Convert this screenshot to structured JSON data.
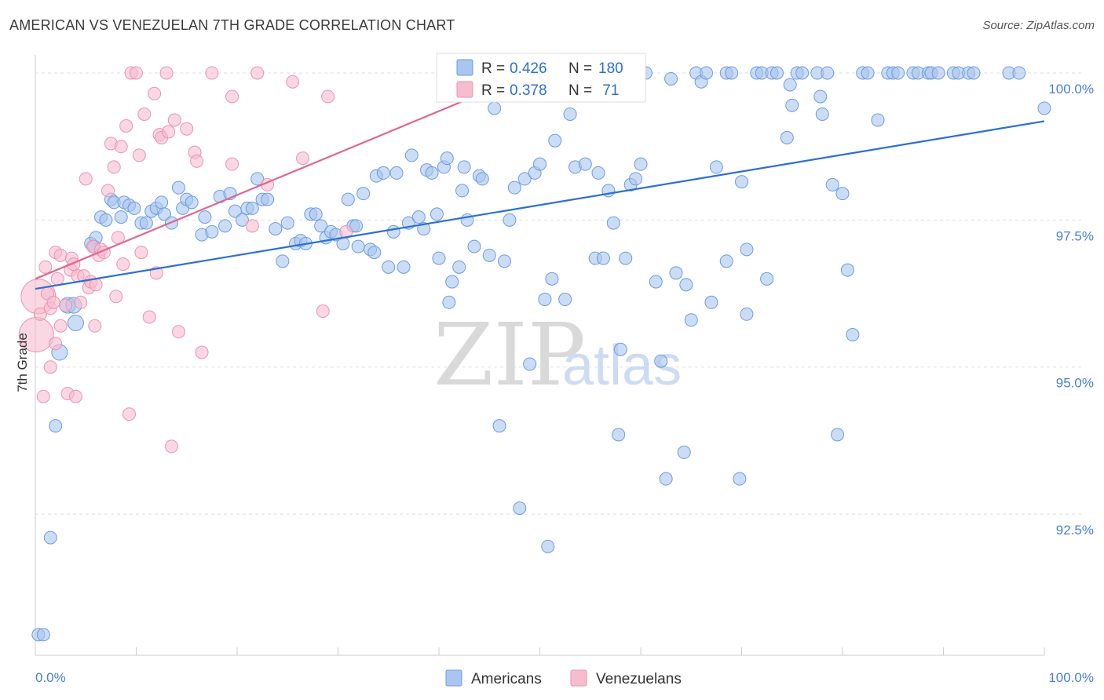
{
  "title": "AMERICAN VS VENEZUELAN 7TH GRADE CORRELATION CHART",
  "source": "Source: ZipAtlas.com",
  "watermark": {
    "part1": "ZIP",
    "part2": "atlas"
  },
  "colors": {
    "american_fill": "#a9c6ef",
    "american_stroke": "#6c9be0",
    "american_line": "#2b6fd1",
    "venezuelan_fill": "#f6bdcf",
    "venezuelan_stroke": "#e994b0",
    "venezuelan_line": "#e0668f",
    "grid": "#dddddd",
    "tick_text": "#4a7fd4"
  },
  "legend_box": {
    "rows": [
      {
        "r_label": "R =",
        "r_value": "0.426",
        "n_label": "N =",
        "n_value": "180"
      },
      {
        "r_label": "R =",
        "r_value": "0.378",
        "n_label": "N =",
        "n_value": " 71"
      }
    ]
  },
  "bottom_legend": [
    "Americans",
    "Venezuelans"
  ],
  "chart_data": {
    "type": "scatter",
    "xlabel": "",
    "ylabel": "7th Grade",
    "xlim": [
      0,
      100
    ],
    "ylim": [
      90.3,
      100.2
    ],
    "x_tick_labels": [
      "0.0%",
      "100.0%"
    ],
    "y_ticks": [
      92.5,
      95.0,
      97.5,
      100.0
    ],
    "y_tick_labels": [
      "92.5%",
      "95.0%",
      "97.5%",
      "100.0%"
    ],
    "grid": true,
    "series": [
      {
        "name": "Americans",
        "r": 0.426,
        "n": 180,
        "trend": {
          "x0": 0,
          "y0": 96.33,
          "x1": 100,
          "y1": 99.18
        },
        "points": [
          [
            0.3,
            90.45
          ],
          [
            0.8,
            90.45
          ],
          [
            1.5,
            92.1
          ],
          [
            2.0,
            94.0
          ],
          [
            2.4,
            95.25
          ],
          [
            3.2,
            96.05
          ],
          [
            3.8,
            96.05
          ],
          [
            4.0,
            95.75
          ],
          [
            5.5,
            97.1
          ],
          [
            6.0,
            97.2
          ],
          [
            5.8,
            97.05
          ],
          [
            6.5,
            97.55
          ],
          [
            7.0,
            97.5
          ],
          [
            7.5,
            97.85
          ],
          [
            7.8,
            97.8
          ],
          [
            8.5,
            97.55
          ],
          [
            8.8,
            97.8
          ],
          [
            9.3,
            97.75
          ],
          [
            9.8,
            97.7
          ],
          [
            10.5,
            97.45
          ],
          [
            11.0,
            97.45
          ],
          [
            11.5,
            97.65
          ],
          [
            12.0,
            97.7
          ],
          [
            12.5,
            97.8
          ],
          [
            12.8,
            97.6
          ],
          [
            13.5,
            97.45
          ],
          [
            14.2,
            98.05
          ],
          [
            14.6,
            97.7
          ],
          [
            15.0,
            97.85
          ],
          [
            15.5,
            97.8
          ],
          [
            16.5,
            97.25
          ],
          [
            16.8,
            97.55
          ],
          [
            17.5,
            97.3
          ],
          [
            18.3,
            97.9
          ],
          [
            18.8,
            97.4
          ],
          [
            19.3,
            97.95
          ],
          [
            19.8,
            97.65
          ],
          [
            20.5,
            97.5
          ],
          [
            21.0,
            97.7
          ],
          [
            21.5,
            97.7
          ],
          [
            22.0,
            98.2
          ],
          [
            22.5,
            97.85
          ],
          [
            23.0,
            97.85
          ],
          [
            23.8,
            97.35
          ],
          [
            24.5,
            96.8
          ],
          [
            25.0,
            97.45
          ],
          [
            25.8,
            97.1
          ],
          [
            26.3,
            97.15
          ],
          [
            26.8,
            97.1
          ],
          [
            27.3,
            97.6
          ],
          [
            27.8,
            97.6
          ],
          [
            28.3,
            97.4
          ],
          [
            28.8,
            97.2
          ],
          [
            29.3,
            97.3
          ],
          [
            29.8,
            97.25
          ],
          [
            30.5,
            97.1
          ],
          [
            31.0,
            97.85
          ],
          [
            31.5,
            97.4
          ],
          [
            31.8,
            97.4
          ],
          [
            32.0,
            97.05
          ],
          [
            32.5,
            97.95
          ],
          [
            33.2,
            97.0
          ],
          [
            33.6,
            96.95
          ],
          [
            33.8,
            98.25
          ],
          [
            34.5,
            98.3
          ],
          [
            35.0,
            96.7
          ],
          [
            35.5,
            97.3
          ],
          [
            35.8,
            98.3
          ],
          [
            36.5,
            96.7
          ],
          [
            37.0,
            97.45
          ],
          [
            37.3,
            98.6
          ],
          [
            38.0,
            97.55
          ],
          [
            38.5,
            97.35
          ],
          [
            38.8,
            98.35
          ],
          [
            39.3,
            98.3
          ],
          [
            39.8,
            97.6
          ],
          [
            40.0,
            96.85
          ],
          [
            40.5,
            98.4
          ],
          [
            40.8,
            98.55
          ],
          [
            41.0,
            96.1
          ],
          [
            41.3,
            96.45
          ],
          [
            42.0,
            96.7
          ],
          [
            42.3,
            98.0
          ],
          [
            42.5,
            98.4
          ],
          [
            42.8,
            97.5
          ],
          [
            43.5,
            97.05
          ],
          [
            44.0,
            98.25
          ],
          [
            44.3,
            98.2
          ],
          [
            45.0,
            96.9
          ],
          [
            45.5,
            99.4
          ],
          [
            46.0,
            94.0
          ],
          [
            46.5,
            96.8
          ],
          [
            47.0,
            97.5
          ],
          [
            47.5,
            98.05
          ],
          [
            48.0,
            92.6
          ],
          [
            48.5,
            98.2
          ],
          [
            49.0,
            95.05
          ],
          [
            49.5,
            98.3
          ],
          [
            50.0,
            98.45
          ],
          [
            50.5,
            96.15
          ],
          [
            50.8,
            91.95
          ],
          [
            51.2,
            96.5
          ],
          [
            51.5,
            98.85
          ],
          [
            52.5,
            96.15
          ],
          [
            53.0,
            99.3
          ],
          [
            53.5,
            98.4
          ],
          [
            54.5,
            98.45
          ],
          [
            55.5,
            96.85
          ],
          [
            55.8,
            98.3
          ],
          [
            56.3,
            96.85
          ],
          [
            56.8,
            98.0
          ],
          [
            57.3,
            97.45
          ],
          [
            57.8,
            93.85
          ],
          [
            58.0,
            95.3
          ],
          [
            58.5,
            96.85
          ],
          [
            59.0,
            98.1
          ],
          [
            59.5,
            98.2
          ],
          [
            60.0,
            98.45
          ],
          [
            60.5,
            100.0
          ],
          [
            61.5,
            96.45
          ],
          [
            62.0,
            95.1
          ],
          [
            62.5,
            93.1
          ],
          [
            63.0,
            99.9
          ],
          [
            63.5,
            96.6
          ],
          [
            64.3,
            93.55
          ],
          [
            64.5,
            96.4
          ],
          [
            65.0,
            95.8
          ],
          [
            65.5,
            100.0
          ],
          [
            66.0,
            99.85
          ],
          [
            66.5,
            100.0
          ],
          [
            67.0,
            96.1
          ],
          [
            67.5,
            98.4
          ],
          [
            68.5,
            96.8
          ],
          [
            68.5,
            100.0
          ],
          [
            69.0,
            100.0
          ],
          [
            69.8,
            93.1
          ],
          [
            70.0,
            98.15
          ],
          [
            70.5,
            97.0
          ],
          [
            70.5,
            95.9
          ],
          [
            71.5,
            100.0
          ],
          [
            72.0,
            100.0
          ],
          [
            72.5,
            96.5
          ],
          [
            73.0,
            100.0
          ],
          [
            73.5,
            100.0
          ],
          [
            74.5,
            98.9
          ],
          [
            74.8,
            99.8
          ],
          [
            75.0,
            99.45
          ],
          [
            75.5,
            100.0
          ],
          [
            76.0,
            100.0
          ],
          [
            77.5,
            100.0
          ],
          [
            77.8,
            99.6
          ],
          [
            78.0,
            99.3
          ],
          [
            78.5,
            100.0
          ],
          [
            79.0,
            98.1
          ],
          [
            79.5,
            93.85
          ],
          [
            80.0,
            97.95
          ],
          [
            80.5,
            96.65
          ],
          [
            81.0,
            95.55
          ],
          [
            82.0,
            100.0
          ],
          [
            82.5,
            100.0
          ],
          [
            83.5,
            99.2
          ],
          [
            84.5,
            100.0
          ],
          [
            85.0,
            100.0
          ],
          [
            85.5,
            100.0
          ],
          [
            87.0,
            100.0
          ],
          [
            87.5,
            100.0
          ],
          [
            88.5,
            100.0
          ],
          [
            88.8,
            100.0
          ],
          [
            89.5,
            100.0
          ],
          [
            91.0,
            100.0
          ],
          [
            91.5,
            100.0
          ],
          [
            92.5,
            100.0
          ],
          [
            93.0,
            100.0
          ],
          [
            96.5,
            100.0
          ],
          [
            97.5,
            100.0
          ],
          [
            100.0,
            99.4
          ]
        ]
      },
      {
        "name": "Venezuelans",
        "r": 0.378,
        "n": 71,
        "trend": {
          "x0": 0,
          "y0": 96.5,
          "x1": 43.5,
          "y1": 99.6
        },
        "points": [
          [
            0.1,
            95.55
          ],
          [
            0.3,
            96.2
          ],
          [
            0.5,
            95.9
          ],
          [
            0.8,
            94.5
          ],
          [
            1.0,
            96.7
          ],
          [
            1.2,
            96.25
          ],
          [
            1.5,
            95.0
          ],
          [
            1.5,
            96.0
          ],
          [
            1.8,
            96.1
          ],
          [
            2.0,
            95.4
          ],
          [
            2.0,
            96.95
          ],
          [
            2.2,
            96.5
          ],
          [
            2.5,
            96.9
          ],
          [
            2.5,
            95.7
          ],
          [
            3.0,
            96.05
          ],
          [
            3.2,
            94.55
          ],
          [
            3.5,
            96.65
          ],
          [
            3.6,
            96.85
          ],
          [
            3.8,
            96.75
          ],
          [
            4.0,
            94.5
          ],
          [
            4.2,
            96.55
          ],
          [
            4.5,
            96.1
          ],
          [
            4.8,
            96.55
          ],
          [
            5.0,
            98.2
          ],
          [
            5.3,
            96.35
          ],
          [
            5.5,
            96.45
          ],
          [
            5.7,
            97.05
          ],
          [
            5.9,
            95.7
          ],
          [
            6.0,
            96.4
          ],
          [
            6.3,
            96.9
          ],
          [
            6.5,
            97.0
          ],
          [
            6.8,
            96.95
          ],
          [
            7.2,
            98.0
          ],
          [
            7.5,
            98.8
          ],
          [
            7.8,
            98.4
          ],
          [
            8.0,
            96.2
          ],
          [
            8.2,
            97.2
          ],
          [
            8.5,
            98.75
          ],
          [
            8.7,
            96.75
          ],
          [
            9.0,
            99.1
          ],
          [
            9.3,
            94.2
          ],
          [
            9.5,
            100.0
          ],
          [
            10.0,
            100.0
          ],
          [
            10.3,
            98.6
          ],
          [
            10.5,
            96.95
          ],
          [
            10.8,
            99.3
          ],
          [
            11.3,
            95.85
          ],
          [
            11.8,
            99.65
          ],
          [
            12.0,
            96.6
          ],
          [
            12.3,
            98.95
          ],
          [
            12.5,
            98.9
          ],
          [
            13.0,
            100.0
          ],
          [
            13.2,
            99.0
          ],
          [
            13.5,
            93.65
          ],
          [
            13.8,
            99.2
          ],
          [
            14.2,
            95.6
          ],
          [
            15.0,
            99.05
          ],
          [
            15.8,
            98.65
          ],
          [
            16.0,
            98.5
          ],
          [
            16.5,
            95.25
          ],
          [
            17.5,
            100.0
          ],
          [
            19.5,
            99.6
          ],
          [
            19.5,
            98.45
          ],
          [
            21.5,
            97.4
          ],
          [
            22.0,
            100.0
          ],
          [
            23.0,
            98.1
          ],
          [
            25.5,
            99.85
          ],
          [
            26.5,
            98.55
          ],
          [
            28.5,
            95.95
          ],
          [
            29.0,
            99.6
          ],
          [
            30.8,
            97.3
          ]
        ]
      }
    ]
  }
}
